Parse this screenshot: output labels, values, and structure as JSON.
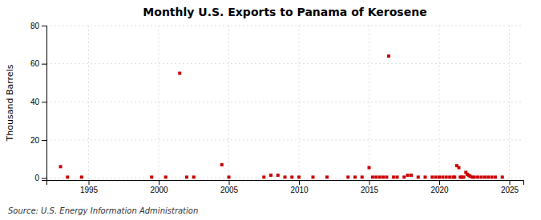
{
  "chart_data": {
    "type": "scatter",
    "title": "Monthly U.S. Exports to Panama of Kerosene",
    "ylabel": "Thousand Barrels",
    "annotations": [
      "Source: U.S. Energy Information Administration"
    ],
    "color": "#cc0000",
    "marker": "square",
    "grid": true,
    "xlim": [
      1992.0,
      2026.0
    ],
    "ylim": [
      -1,
      80
    ],
    "xticks": [
      1995,
      2000,
      2005,
      2010,
      2015,
      2020,
      2025
    ],
    "yticks": [
      0,
      20,
      40,
      60,
      80
    ],
    "x": [
      1993.0,
      1993.5,
      1994.5,
      1999.5,
      2000.5,
      2001.5,
      2002.0,
      2002.5,
      2004.5,
      2005.0,
      2007.5,
      2008.0,
      2008.5,
      2009.0,
      2009.5,
      2010.0,
      2011.0,
      2012.0,
      2013.5,
      2014.0,
      2014.5,
      2015.0,
      2015.25,
      2015.5,
      2015.75,
      2016.0,
      2016.25,
      2016.4,
      2016.75,
      2017.0,
      2017.5,
      2017.75,
      2018.0,
      2018.5,
      2019.0,
      2019.5,
      2019.75,
      2020.0,
      2020.25,
      2020.5,
      2020.75,
      2021.0,
      2021.1,
      2021.25,
      2021.4,
      2021.5,
      2021.6,
      2021.75,
      2021.9,
      2022.0,
      2022.1,
      2022.2,
      2022.35,
      2022.5,
      2022.75,
      2023.0,
      2023.25,
      2023.5,
      2023.75,
      2024.0,
      2024.5
    ],
    "values": [
      6.0,
      0.5,
      0.5,
      0.5,
      0.5,
      55.0,
      0.5,
      0.5,
      7.0,
      0.5,
      0.5,
      1.5,
      1.5,
      0.5,
      0.5,
      0.5,
      0.5,
      0.5,
      0.5,
      0.5,
      0.5,
      5.5,
      0.5,
      0.5,
      0.5,
      0.5,
      0.5,
      64.0,
      0.5,
      0.5,
      0.5,
      1.5,
      1.5,
      0.5,
      0.5,
      0.5,
      0.5,
      0.5,
      0.5,
      0.5,
      0.5,
      0.5,
      0.5,
      6.5,
      5.5,
      0.5,
      0.5,
      0.5,
      3.0,
      2.0,
      1.5,
      1.0,
      0.5,
      0.5,
      0.5,
      0.5,
      0.5,
      0.5,
      0.5,
      0.5,
      0.5
    ]
  }
}
